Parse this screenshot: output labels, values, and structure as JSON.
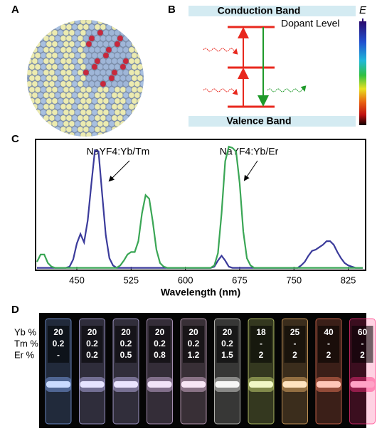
{
  "panel_labels": [
    "A",
    "B",
    "C",
    "D"
  ],
  "energy_diagram": {
    "conduction_band": "Conduction Band",
    "valence_band": "Valence Band",
    "dopant_level": "Dopant Level",
    "energy_symbol": "E"
  },
  "chart_data": {
    "type": "line",
    "x_label": "Wavelength (nm)",
    "annotations": [
      "NaYF4:Yb/Tm",
      "NaYF4:Yb/Er"
    ],
    "x": [
      395,
      400,
      405,
      410,
      415,
      420,
      425,
      430,
      435,
      440,
      445,
      450,
      455,
      460,
      465,
      470,
      475,
      480,
      485,
      490,
      495,
      500,
      505,
      510,
      515,
      520,
      525,
      530,
      535,
      540,
      545,
      550,
      555,
      560,
      565,
      570,
      575,
      580,
      585,
      590,
      595,
      600,
      605,
      610,
      615,
      620,
      625,
      630,
      635,
      640,
      645,
      650,
      655,
      660,
      665,
      670,
      675,
      680,
      685,
      690,
      695,
      700,
      705,
      710,
      715,
      720,
      725,
      730,
      735,
      740,
      745,
      750,
      755,
      760,
      765,
      770,
      775,
      780,
      785,
      790,
      795,
      800,
      805,
      810,
      815,
      820,
      825,
      830,
      835,
      840,
      845
    ],
    "series": [
      {
        "name": "NaYF4:Yb/Tm",
        "color": "#3b3b9b",
        "values": [
          0,
          0,
          0,
          0,
          0,
          0,
          0,
          0,
          0,
          0.01,
          0.07,
          0.2,
          0.28,
          0.21,
          0.39,
          0.69,
          0.97,
          0.96,
          0.61,
          0.27,
          0.08,
          0.02,
          0,
          0,
          0,
          0,
          0,
          0,
          0,
          0,
          0,
          0,
          0,
          0,
          0,
          0,
          0,
          0,
          0,
          0,
          0,
          0,
          0,
          0,
          0,
          0,
          0,
          0,
          0,
          0.01,
          0.06,
          0.1,
          0.06,
          0.01,
          0,
          0,
          0,
          0,
          0,
          0,
          0,
          0,
          0,
          0,
          0,
          0,
          0,
          0,
          0,
          0,
          0,
          0,
          0,
          0.02,
          0.05,
          0.1,
          0.14,
          0.15,
          0.17,
          0.19,
          0.22,
          0.22,
          0.19,
          0.13,
          0.08,
          0.04,
          0.02,
          0.01,
          0,
          0,
          0
        ]
      },
      {
        "name": "NaYF4:Yb/Er",
        "color": "#3aa655",
        "values": [
          0.05,
          0.11,
          0.11,
          0.04,
          0.01,
          0,
          0,
          0,
          0,
          0,
          0,
          0,
          0,
          0,
          0,
          0,
          0,
          0,
          0,
          0,
          0,
          0,
          0,
          0.02,
          0.06,
          0.11,
          0.13,
          0.13,
          0.22,
          0.45,
          0.6,
          0.57,
          0.38,
          0.15,
          0.04,
          0.01,
          0,
          0,
          0,
          0,
          0,
          0,
          0,
          0,
          0,
          0,
          0,
          0,
          0,
          0.02,
          0.12,
          0.45,
          0.88,
          1.0,
          0.99,
          0.96,
          0.7,
          0.3,
          0.08,
          0.02,
          0,
          0,
          0,
          0,
          0,
          0,
          0,
          0,
          0,
          0,
          0,
          0,
          0,
          0,
          0,
          0,
          0,
          0,
          0,
          0,
          0,
          0,
          0,
          0,
          0,
          0,
          0,
          0,
          0,
          0,
          0
        ]
      }
    ],
    "xlim": [
      393,
      849
    ],
    "ylim": [
      -0.02,
      1.06
    ],
    "xticks": [
      450,
      525,
      600,
      675,
      750,
      825
    ]
  },
  "vials": {
    "row_labels": [
      "Yb %",
      "Tm %",
      "Er %"
    ],
    "columns": [
      [
        "20",
        "0.2",
        "-"
      ],
      [
        "20",
        "0.2",
        "0.2"
      ],
      [
        "20",
        "0.2",
        "0.5"
      ],
      [
        "20",
        "0.2",
        "0.8"
      ],
      [
        "20",
        "0.2",
        "1.2"
      ],
      [
        "20",
        "0.2",
        "1.5"
      ],
      [
        "18",
        "-",
        "2"
      ],
      [
        "25",
        "-",
        "2"
      ],
      [
        "40",
        "-",
        "2"
      ],
      [
        "60",
        "-",
        "2"
      ]
    ]
  }
}
